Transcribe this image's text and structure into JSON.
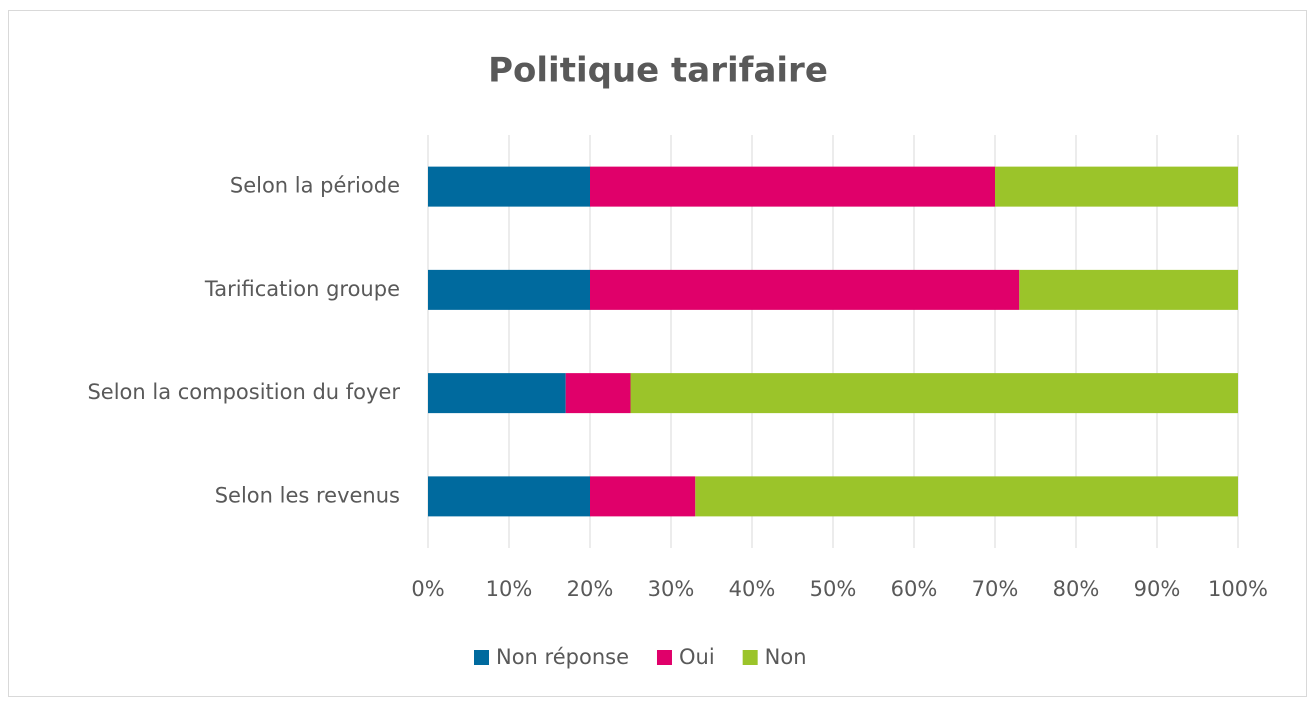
{
  "chart_data": {
    "type": "bar",
    "orientation": "horizontal",
    "stacked": true,
    "title": "Politique tarifaire",
    "categories": [
      "Selon la période",
      "Tarification groupe",
      "Selon la composition du foyer",
      "Selon les revenus"
    ],
    "series": [
      {
        "name": "Non réponse",
        "color": "#006a9e",
        "values": [
          20,
          20,
          17,
          20
        ]
      },
      {
        "name": "Oui",
        "color": "#e0006a",
        "values": [
          50,
          53,
          8,
          13
        ]
      },
      {
        "name": "Non",
        "color": "#9bc42a",
        "values": [
          30,
          27,
          75,
          67
        ]
      }
    ],
    "xlim": [
      0,
      100
    ],
    "xticks": [
      {
        "value": 0,
        "label": "0%"
      },
      {
        "value": 10,
        "label": "10%"
      },
      {
        "value": 20,
        "label": "20%"
      },
      {
        "value": 30,
        "label": "30%"
      },
      {
        "value": 40,
        "label": "40%"
      },
      {
        "value": 50,
        "label": "50%"
      },
      {
        "value": 60,
        "label": "60%"
      },
      {
        "value": 70,
        "label": "70%"
      },
      {
        "value": 80,
        "label": "80%"
      },
      {
        "value": 90,
        "label": "90%"
      },
      {
        "value": 100,
        "label": "100%"
      }
    ],
    "grid": true,
    "legend": "bottom"
  }
}
